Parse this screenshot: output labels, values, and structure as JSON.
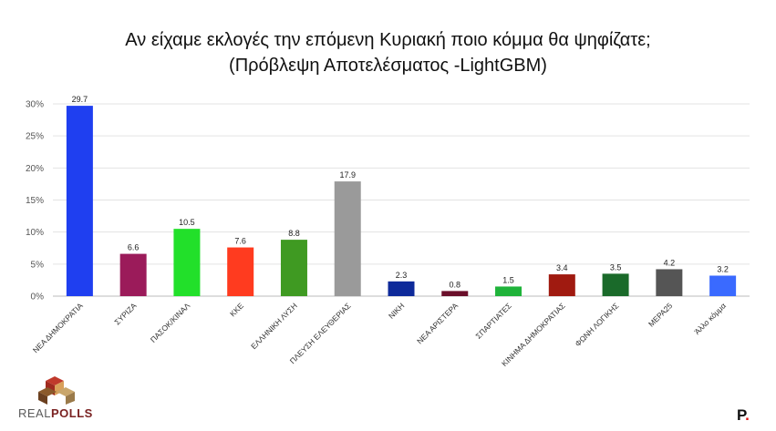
{
  "title_lines": [
    "Αν είχαμε εκλογές την επόμενη Κυριακή ποιο κόμμα θα ψηφίζατε;",
    "(Πρόβλεψη Αποτελέσματος -LightGBM)"
  ],
  "chart_data": {
    "type": "bar",
    "categories": [
      "ΝΕΑ ΔΗΜΟΚΡΑΤΙΑ",
      "ΣΥΡΙΖΑ",
      "ΠΑΣΟΚ/ΚΙΝΑΛ",
      "ΚΚΕ",
      "ΕΛΛΗΝΙΚΗ ΛΥΣΗ",
      "ΠΛΕΥΣΗ ΕΛΕΥΘΕΡΙΑΣ",
      "ΝΙΚΗ",
      "ΝΕΑ ΑΡΙΣΤΕΡΑ",
      "ΣΠΑΡΤΙΑΤΕΣ",
      "ΚΙΝΗΜΑ ΔΗΜΟΚΡΑΤΙΑΣ",
      "ΦΩΝΗ ΛΟΓΙΚΗΣ",
      "ΜΕΡΑ25",
      "Άλλο κόμμα"
    ],
    "values": [
      29.7,
      6.6,
      10.5,
      7.6,
      8.8,
      17.9,
      2.3,
      0.8,
      1.5,
      3.4,
      3.5,
      4.2,
      3.2
    ],
    "value_labels": [
      "29.7",
      "6.6",
      "10.5",
      "7.6",
      "8.8",
      "17.9",
      "2.3",
      "0.8",
      "1.5",
      "3.4",
      "3.5",
      "4.2",
      "3.2"
    ],
    "colors": [
      "#1f3ff0",
      "#9b1b5a",
      "#22e02a",
      "#ff3b1f",
      "#3f9a22",
      "#9a9a9a",
      "#0e2a9a",
      "#6a0f2a",
      "#1fb33a",
      "#a01a10",
      "#1a6a2a",
      "#555555",
      "#3a6aff"
    ],
    "ylim": [
      0,
      30
    ],
    "yticks": [
      0,
      5,
      10,
      15,
      20,
      25,
      30
    ],
    "ytick_labels": [
      "0%",
      "5%",
      "10%",
      "15%",
      "20%",
      "25%",
      "30%"
    ],
    "grid": true
  },
  "logos": {
    "realpolls_a": "REAL",
    "realpolls_b": "POLLS",
    "p_letter": "P",
    "p_dot": "."
  }
}
